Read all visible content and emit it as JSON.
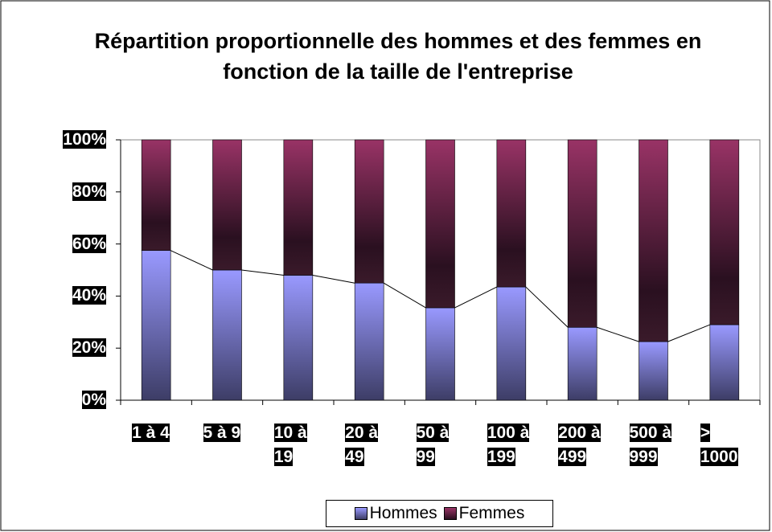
{
  "chart_data": {
    "type": "bar",
    "stacked": true,
    "title": "Répartition proportionnelle des hommes et des femmes en fonction de la taille de l'entreprise",
    "categories": [
      "1 à 4",
      "5 à 9",
      "10 à 19",
      "20 à 49",
      "50 à 99",
      "100 à 199",
      "200 à 499",
      "500 à 999",
      "> 1000"
    ],
    "series": [
      {
        "name": "Hommes",
        "color": "#9999ff",
        "values": [
          57.5,
          50,
          48,
          45,
          35.5,
          43.5,
          28,
          22.5,
          29
        ]
      },
      {
        "name": "Femmes",
        "color": "#993366",
        "values": [
          42.5,
          50,
          52,
          55,
          64.5,
          56.5,
          72,
          77.5,
          71
        ]
      }
    ],
    "ylim": [
      0,
      100
    ],
    "yticks": [
      {
        "value": 0,
        "label": "0%"
      },
      {
        "value": 20,
        "label": "20%"
      },
      {
        "value": 40,
        "label": "40%"
      },
      {
        "value": 60,
        "label": "60%"
      },
      {
        "value": 80,
        "label": "80%"
      },
      {
        "value": 100,
        "label": "100%"
      }
    ],
    "legend": "bottom"
  }
}
